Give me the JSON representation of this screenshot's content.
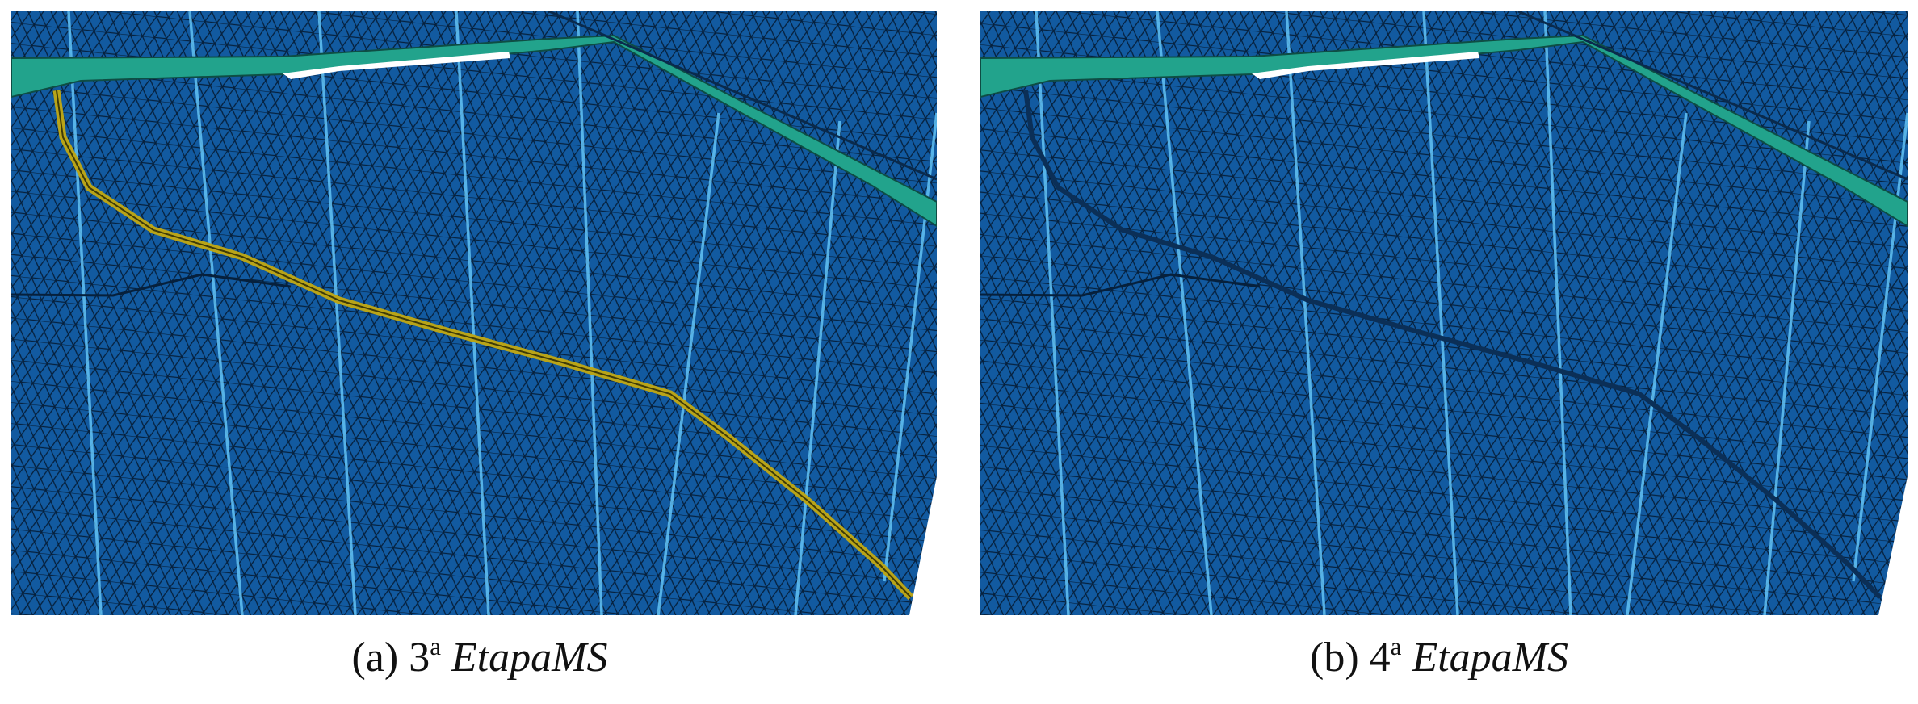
{
  "figure": {
    "panels": [
      {
        "id": "a",
        "label": "(a)",
        "stage": "3",
        "ordinal": "a",
        "name": "EtapaMS"
      },
      {
        "id": "b",
        "label": "(b)",
        "stage": "4",
        "ordinal": "a",
        "name": "EtapaMS"
      }
    ]
  },
  "colors": {
    "mesh_fill": "#125aa0",
    "mesh_line": "#06203c",
    "fault_band": "#22a38c",
    "fracture": "#b9a418",
    "stripe": "#63c3f5",
    "void": "#ffffff"
  }
}
